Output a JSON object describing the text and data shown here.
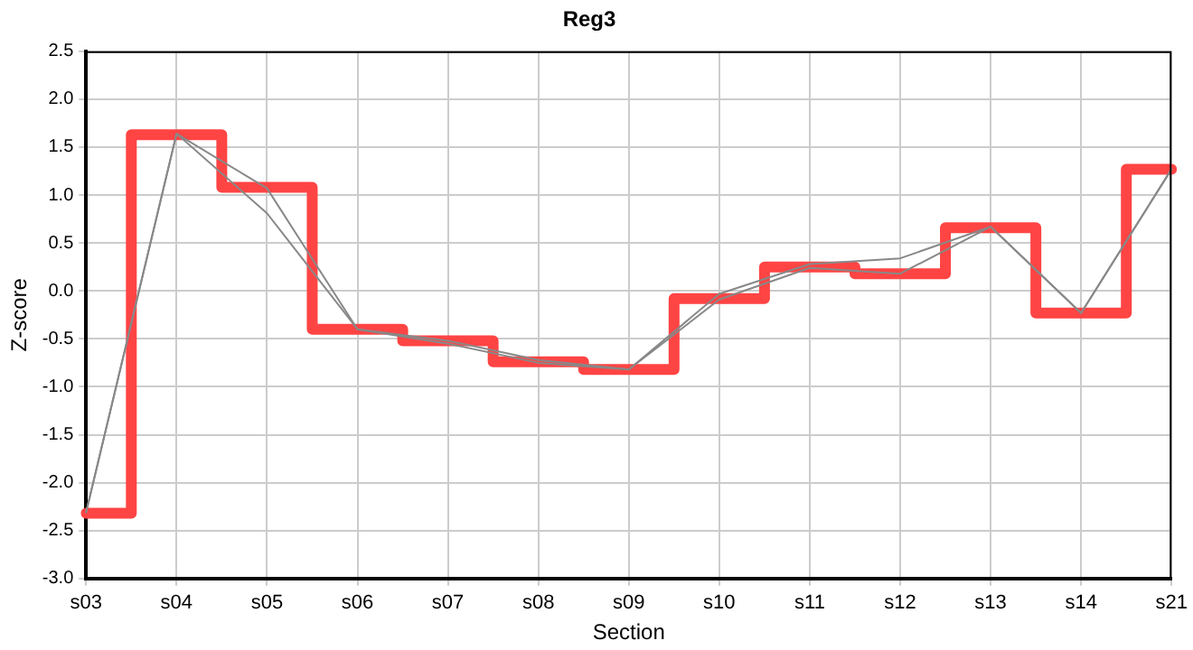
{
  "chart_data": {
    "type": "line",
    "title": "Reg3",
    "xlabel": "Section",
    "ylabel": "Z-score",
    "categories": [
      "s03",
      "s04",
      "s05",
      "s06",
      "s07",
      "s08",
      "s09",
      "s10",
      "s11",
      "s12",
      "s13",
      "s14",
      "s21"
    ],
    "series": [
      {
        "type": "step",
        "color": "#ff4444",
        "values": [
          -2.32,
          1.63,
          1.08,
          -0.4,
          -0.52,
          -0.74,
          -0.82,
          -0.08,
          0.25,
          0.18,
          0.66,
          -0.23,
          1.27
        ]
      },
      {
        "type": "line",
        "color": "#888888",
        "values": [
          -2.31,
          1.64,
          1.07,
          -0.4,
          -0.52,
          -0.72,
          -0.82,
          -0.03,
          0.28,
          0.34,
          0.67,
          -0.23,
          1.27
        ]
      },
      {
        "type": "line",
        "color": "#888888",
        "values": [
          -2.31,
          1.64,
          0.81,
          -0.4,
          -0.55,
          -0.75,
          -0.82,
          -0.09,
          0.24,
          0.18,
          0.67,
          -0.23,
          1.27
        ]
      }
    ],
    "ylim": [
      -3,
      2.5
    ],
    "yticks": [
      {
        "value": -3,
        "label": "-3.0"
      },
      -2.5,
      {
        "value": -2,
        "label": "-2.0"
      },
      -1.5,
      {
        "value": -1,
        "label": "-1.0"
      },
      -0.5,
      {
        "value": 0,
        "label": "0.0"
      },
      0.5,
      {
        "value": 1,
        "label": "1.0"
      },
      1.5,
      {
        "value": 2,
        "label": "2.0"
      },
      2.5
    ],
    "grid": true,
    "legend": false,
    "marker": "none"
  }
}
